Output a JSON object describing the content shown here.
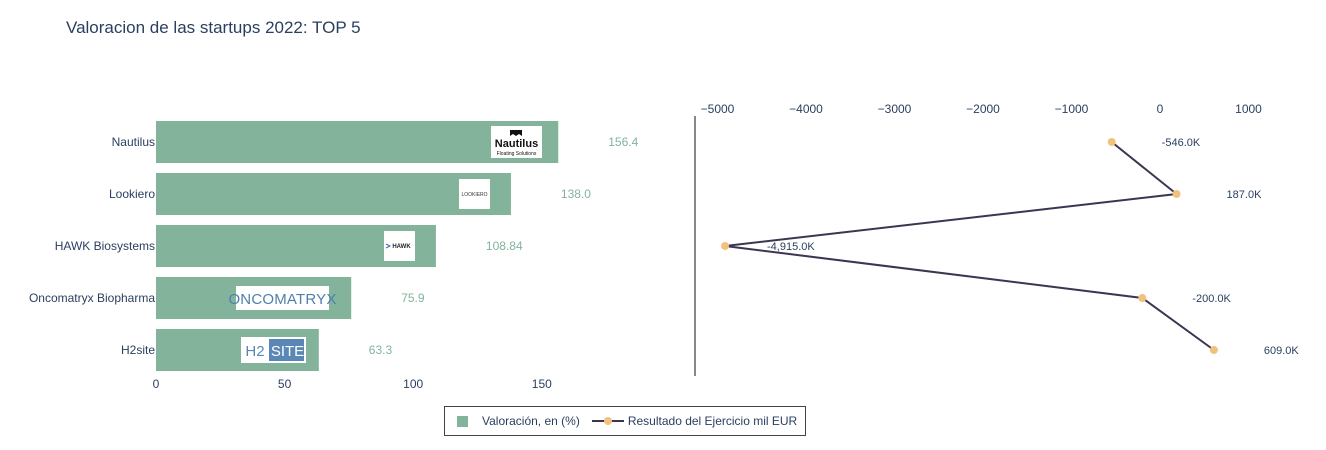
{
  "title": "Valoracion de las startups 2022: TOP 5",
  "colors": {
    "bar": "#83b39b",
    "line": "#3a3652",
    "marker": "#f0c27e",
    "text": "#2a3f5f",
    "divider": "#888888"
  },
  "logos": [
    {
      "company": "Nautilus",
      "text": "Nautilus",
      "subtext": "Floating Solutions"
    },
    {
      "company": "Lookiero",
      "text": "LOOKIERO"
    },
    {
      "company": "HAWK Biosystems",
      "text": "HAWK"
    },
    {
      "company": "Oncomatryx Biopharma",
      "text": "ONCOMATRYX"
    },
    {
      "company": "H2site",
      "text_left": "H2",
      "text_right": "SITE"
    }
  ],
  "legend": {
    "bar_label": "Valoración, en (%)",
    "line_label": "Resultado del Ejercicio mil EUR"
  },
  "chart_data": [
    {
      "type": "bar",
      "orientation": "horizontal",
      "categories": [
        "Nautilus",
        "Lookiero",
        "HAWK Biosystems",
        "Oncomatryx Biopharma",
        "H2site"
      ],
      "series": [
        {
          "name": "Valoración, en (%)",
          "values": [
            156.4,
            138.0,
            108.84,
            75.9,
            63.3
          ]
        }
      ],
      "value_labels": [
        "156.4",
        "138.0",
        "108.84",
        "75.9",
        "63.3"
      ],
      "xlim": [
        0,
        200
      ],
      "xticks": [
        0,
        50,
        100,
        150
      ],
      "grid": false
    },
    {
      "type": "line",
      "orientation": "horizontal",
      "categories": [
        "Nautilus",
        "Lookiero",
        "HAWK Biosystems",
        "Oncomatryx Biopharma",
        "H2site"
      ],
      "series": [
        {
          "name": "Resultado del Ejercicio mil EUR",
          "values": [
            -546.0,
            187.0,
            -4915.0,
            -200.0,
            609.0
          ]
        }
      ],
      "value_labels": [
        "-546.0K",
        "187.0K",
        "-4,915.0K",
        "-200.0K",
        "609.0K"
      ],
      "xlim": [
        -5500,
        1300
      ],
      "xticks": [
        -5000,
        -4000,
        -3000,
        -2000,
        -1000,
        0,
        1000
      ],
      "xtick_labels": [
        "−5000",
        "−4000",
        "−3000",
        "−2000",
        "−1000",
        "0",
        "1000"
      ],
      "xaxis_side": "top",
      "grid": false
    }
  ]
}
